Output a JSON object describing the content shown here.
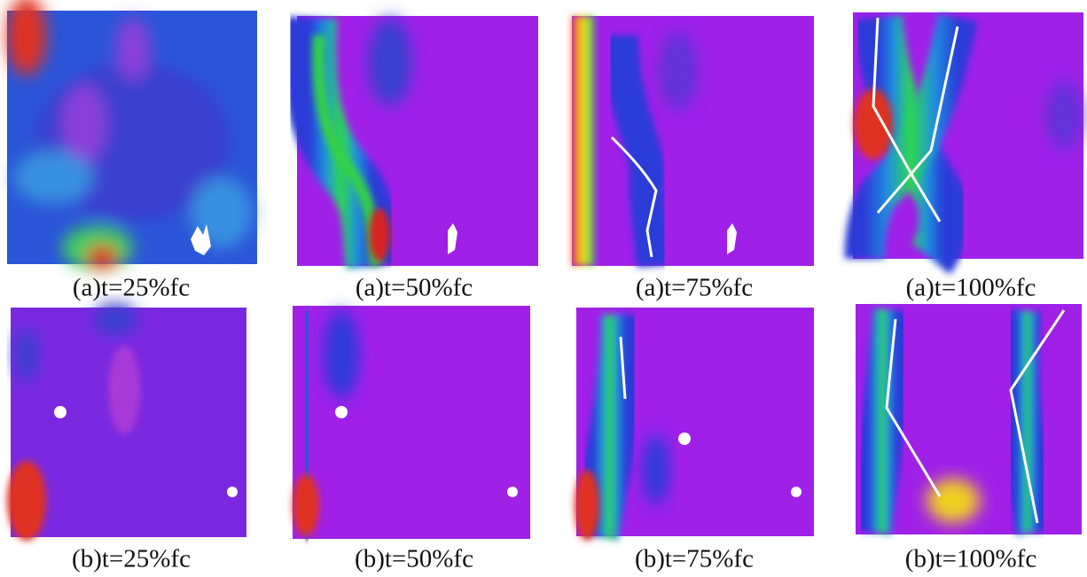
{
  "captions": [
    "(a)t=25%fc",
    "(a)t=50%fc",
    "(a)t=75%fc",
    "(a)t=100%fc",
    "(b)t=25%fc",
    "(b)t=50%fc",
    "(b)t=75%fc",
    "(b)t=100%fc"
  ]
}
